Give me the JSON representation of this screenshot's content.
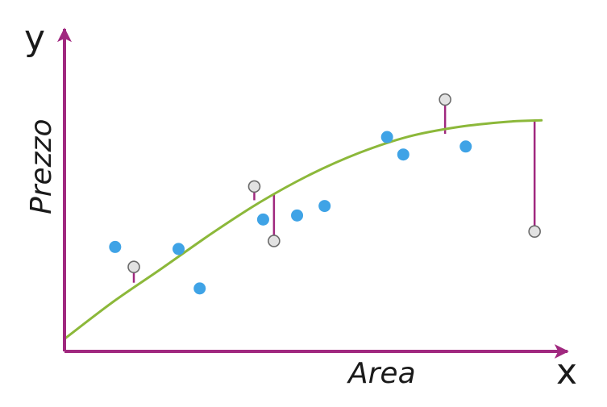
{
  "chart_data": {
    "type": "scatter",
    "title": "",
    "xlabel": "Area",
    "ylabel": "Prezzo",
    "x_axis_letter": "x",
    "y_axis_letter": "y",
    "xlim": [
      0,
      100
    ],
    "ylim": [
      0,
      100
    ],
    "grid": false,
    "legend": "none",
    "colors": {
      "axis": "#a0287f",
      "curve": "#8cb83a",
      "observed_point": "#3fa3e6",
      "highlight_point": "#e2e2e2",
      "highlight_point_stroke": "#6b6b6b",
      "residual": "#a0287f"
    },
    "observed_points": [
      {
        "x": 10.3,
        "y": 41.8
      },
      {
        "x": 23.2,
        "y": 41.0
      },
      {
        "x": 27.5,
        "y": 25.2
      },
      {
        "x": 40.4,
        "y": 52.8
      },
      {
        "x": 47.3,
        "y": 54.4
      },
      {
        "x": 52.9,
        "y": 58.2
      },
      {
        "x": 65.6,
        "y": 85.8
      },
      {
        "x": 68.9,
        "y": 78.8
      },
      {
        "x": 81.6,
        "y": 82.0
      }
    ],
    "highlighted_points": [
      {
        "x": 14.1,
        "y": 33.8,
        "fitted": 27.5
      },
      {
        "x": 38.6,
        "y": 66.0,
        "fitted": 60.5
      },
      {
        "x": 42.6,
        "y": 44.2,
        "fitted": 62.9
      },
      {
        "x": 77.4,
        "y": 100.8,
        "fitted": 87.1
      },
      {
        "x": 95.6,
        "y": 48.0,
        "fitted": 92.3
      }
    ],
    "curve": [
      {
        "x": 0,
        "y": 5.0
      },
      {
        "x": 10,
        "y": 20.0
      },
      {
        "x": 20,
        "y": 33.5
      },
      {
        "x": 30,
        "y": 47.3
      },
      {
        "x": 40,
        "y": 60.0
      },
      {
        "x": 50,
        "y": 70.8
      },
      {
        "x": 60,
        "y": 79.5
      },
      {
        "x": 70,
        "y": 86.0
      },
      {
        "x": 80,
        "y": 89.8
      },
      {
        "x": 90,
        "y": 91.9
      },
      {
        "x": 97,
        "y": 92.5
      }
    ]
  }
}
